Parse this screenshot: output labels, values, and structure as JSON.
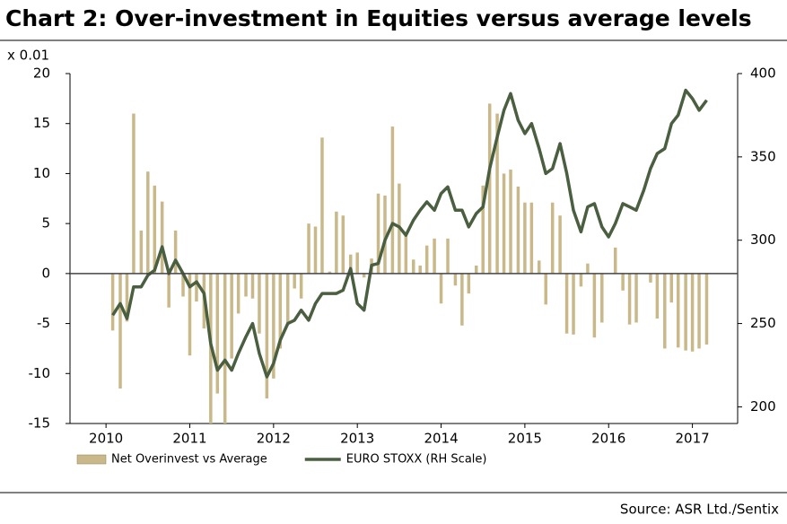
{
  "chart_data": {
    "type": "bar_line",
    "title": "Chart 2: Over-investment in Equities versus average levels",
    "y_unit_label": "x 0.01",
    "source": "Source: ASR Ltd./Sentix",
    "x": [
      2010.08,
      2010.17,
      2010.25,
      2010.33,
      2010.42,
      2010.5,
      2010.58,
      2010.67,
      2010.75,
      2010.83,
      2010.92,
      2011.0,
      2011.08,
      2011.17,
      2011.25,
      2011.33,
      2011.42,
      2011.5,
      2011.58,
      2011.67,
      2011.75,
      2011.83,
      2011.92,
      2012.0,
      2012.08,
      2012.17,
      2012.25,
      2012.33,
      2012.42,
      2012.5,
      2012.58,
      2012.67,
      2012.75,
      2012.83,
      2012.92,
      2013.0,
      2013.08,
      2013.17,
      2013.25,
      2013.33,
      2013.42,
      2013.5,
      2013.58,
      2013.67,
      2013.75,
      2013.83,
      2013.92,
      2014.0,
      2014.08,
      2014.17,
      2014.25,
      2014.33,
      2014.42,
      2014.5,
      2014.58,
      2014.67,
      2014.75,
      2014.83,
      2014.92,
      2015.0,
      2015.08,
      2015.17,
      2015.25,
      2015.33,
      2015.42,
      2015.5,
      2015.58,
      2015.67,
      2015.75,
      2015.83,
      2015.92,
      2016.0,
      2016.08,
      2016.17,
      2016.25,
      2016.33,
      2016.42,
      2016.5,
      2016.58,
      2016.67,
      2016.75,
      2016.83,
      2016.92,
      2017.0,
      2017.08,
      2017.17
    ],
    "series": [
      {
        "name": "Net Overinvest vs Average",
        "kind": "bar",
        "color": "#c9b98a",
        "values": [
          -5.7,
          -11.5,
          -4.8,
          16,
          4.3,
          10.2,
          8.8,
          7.2,
          -3.4,
          4.3,
          -2.3,
          -8.2,
          -2.8,
          -5.5,
          -15,
          -12,
          -15,
          -8.5,
          -4,
          -2.3,
          -2.5,
          -6,
          -12.5,
          -10.5,
          -7.5,
          -5,
          -1.5,
          -2.5,
          5,
          4.7,
          13.6,
          0.2,
          6.2,
          5.8,
          1.9,
          2.1,
          -0.4,
          1.5,
          8,
          7.8,
          14.7,
          9,
          3.8,
          1.4,
          0.8,
          2.8,
          3.5,
          -3,
          3.5,
          -1.2,
          -5.2,
          -2,
          0.8,
          8.8,
          17,
          16,
          10,
          10.4,
          8.7,
          7.1,
          7.1,
          1.3,
          -3.1,
          7.1,
          5.8,
          -6,
          -6.1,
          -1.3,
          1,
          -6.4,
          -4.9,
          0,
          2.6,
          -1.7,
          -5.1,
          -4.9,
          0,
          -0.9,
          -4.5,
          -7.5,
          -2.9,
          -7.4,
          -7.7,
          -7.8,
          -7.5,
          -7.1
        ]
      },
      {
        "name": "EURO STOXX (RH Scale)",
        "kind": "line",
        "axis": "y2",
        "color": "#4a5e40",
        "values": [
          255,
          262,
          253,
          272,
          272,
          279,
          282,
          296,
          280,
          288,
          280,
          272,
          275,
          268,
          238,
          222,
          228,
          222,
          232,
          242,
          250,
          232,
          218,
          226,
          240,
          250,
          252,
          258,
          252,
          262,
          268,
          268,
          268,
          270,
          283,
          262,
          258,
          285,
          286,
          300,
          310,
          308,
          303,
          312,
          318,
          323,
          318,
          328,
          332,
          318,
          318,
          308,
          316,
          320,
          343,
          362,
          378,
          388,
          372,
          364,
          370,
          355,
          340,
          343,
          358,
          340,
          318,
          305,
          320,
          322,
          308,
          302,
          310,
          322,
          320,
          318,
          330,
          343,
          352,
          355,
          370,
          375,
          390,
          385,
          378,
          384
        ]
      }
    ],
    "xlim": [
      2009.57,
      2017.54
    ],
    "xticks": [
      2010,
      2011,
      2012,
      2013,
      2014,
      2015,
      2016,
      2017
    ],
    "ylim": [
      -15,
      20
    ],
    "yticks": [
      -15,
      -10,
      -5,
      0,
      5,
      10,
      15,
      20
    ],
    "y2lim": [
      190,
      400
    ],
    "y2ticks": [
      200,
      250,
      300,
      350,
      400
    ]
  }
}
